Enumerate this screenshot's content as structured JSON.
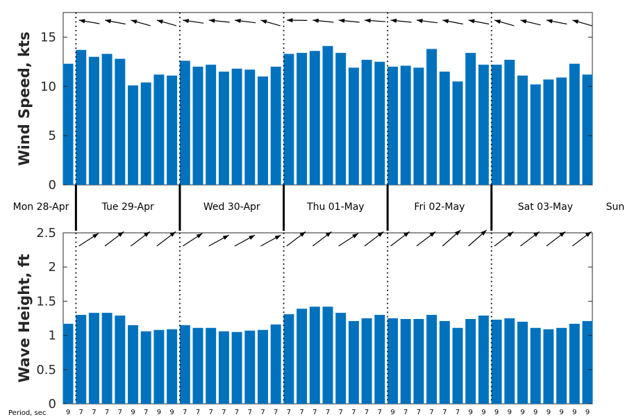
{
  "chart_data": [
    {
      "type": "bar",
      "ylabel": "Wind Speed, kts",
      "ylim": [
        0,
        17.5
      ],
      "yticks": [
        0,
        5,
        10,
        15
      ],
      "bar_color": "#0072BD",
      "values": [
        12.3,
        13.7,
        13.0,
        13.3,
        12.8,
        10.1,
        10.4,
        11.2,
        11.1,
        12.6,
        12.0,
        12.2,
        11.5,
        11.8,
        11.7,
        11.0,
        12.0,
        13.3,
        13.4,
        13.6,
        14.1,
        13.4,
        11.9,
        12.7,
        12.5,
        12.0,
        12.1,
        11.9,
        13.8,
        11.5,
        10.5,
        13.4,
        12.2,
        12.2,
        12.7,
        11.1,
        10.2,
        10.7,
        10.9,
        12.3,
        11.2
      ],
      "direction_arrows_deg": [
        -10,
        -8,
        -6,
        -10,
        -15,
        -20,
        -30,
        -20,
        -15,
        -5,
        -3,
        0,
        0,
        -3,
        -5,
        -20,
        -25,
        10,
        3,
        0,
        0,
        0,
        0,
        3,
        5,
        0,
        -3,
        -3,
        -5,
        -10,
        -10,
        -10,
        -15,
        -20,
        -20,
        -15,
        -10,
        -10,
        -15,
        -20,
        -15
      ]
    },
    {
      "type": "bar",
      "ylabel": "Wave Height, ft",
      "ylim": [
        0,
        2.5
      ],
      "yticks": [
        0,
        0.5,
        1,
        1.5,
        2,
        2.5
      ],
      "bar_color": "#0072BD",
      "values": [
        1.17,
        1.3,
        1.33,
        1.33,
        1.29,
        1.15,
        1.06,
        1.08,
        1.09,
        1.15,
        1.11,
        1.11,
        1.06,
        1.05,
        1.07,
        1.08,
        1.16,
        1.31,
        1.39,
        1.42,
        1.42,
        1.33,
        1.21,
        1.25,
        1.3,
        1.25,
        1.24,
        1.24,
        1.3,
        1.21,
        1.11,
        1.24,
        1.29,
        1.23,
        1.25,
        1.2,
        1.11,
        1.09,
        1.11,
        1.17,
        1.21
      ],
      "direction_arrows_deg": [
        -20,
        -20,
        -20,
        -25,
        -25,
        -25,
        -25,
        -25,
        -25,
        -20,
        -15,
        -15,
        -15,
        -15,
        -15,
        -15,
        -20,
        -25,
        -25,
        -25,
        -20,
        -20,
        -25,
        -25,
        -25,
        -25,
        -30,
        -25,
        -25,
        -30,
        -30,
        -30,
        -30,
        -25,
        -25,
        -25,
        -25,
        -25,
        -30,
        -25,
        -25
      ],
      "period_label": "Period, sec",
      "periods": [
        "9",
        "7",
        "7",
        "7",
        "7",
        "9",
        "7",
        "9",
        "9",
        "7",
        "7",
        "7",
        "7",
        "7",
        "7",
        "7",
        "7",
        "7",
        "7",
        "7",
        "7",
        "7",
        "7",
        "7",
        "7",
        "9",
        "7",
        "7",
        "7",
        "7",
        "7",
        "9",
        "9",
        "9",
        "9",
        "9",
        "9",
        "9",
        "9",
        "9",
        "9"
      ]
    }
  ],
  "days": [
    "Mon 28-Apr",
    "Tue 29-Apr",
    "Wed 30-Apr",
    "Thu 01-May",
    "Fri 02-May",
    "Sat 03-May",
    "Sun"
  ]
}
